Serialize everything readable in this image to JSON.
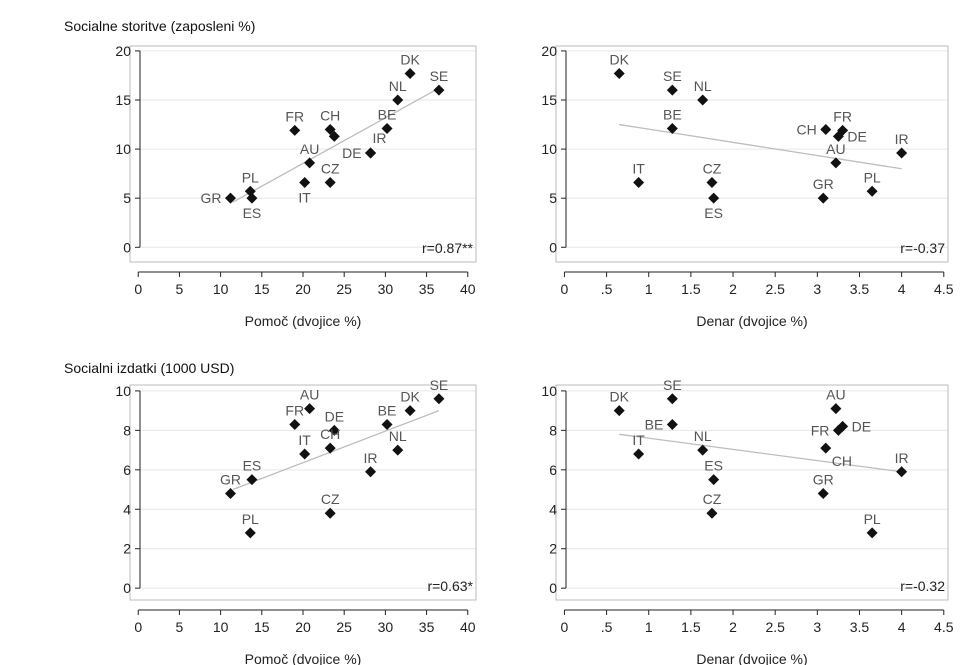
{
  "rows": [
    {
      "title": "Socialne storitve (zaposleni %)"
    },
    {
      "title": "Socialni izdatki (1000 USD)"
    }
  ],
  "chart_data": [
    {
      "type": "scatter",
      "xlabel": "Pomoč (dvojice %)",
      "xticks": [
        0,
        5,
        10,
        15,
        20,
        25,
        30,
        35,
        40
      ],
      "xticklabels": [
        "0",
        "5",
        "10",
        "15",
        "20",
        "25",
        "30",
        "35",
        "40"
      ],
      "yticks": [
        0,
        5,
        10,
        15,
        20
      ],
      "yticklabels": [
        "0",
        "5",
        "10",
        "15",
        "20"
      ],
      "xlim": [
        -1,
        41
      ],
      "ylim": [
        -1.5,
        20.5
      ],
      "annotation": "r=0.87**",
      "fit_line": {
        "x0": 11.5,
        "y0": 4.6,
        "x1": 36.5,
        "y1": 16.2
      },
      "points": [
        {
          "label": "GR",
          "x": 11.2,
          "y": 5.0,
          "pos": "left"
        },
        {
          "label": "PL",
          "x": 13.6,
          "y": 5.7,
          "pos": "top"
        },
        {
          "label": "ES",
          "x": 13.8,
          "y": 5.0,
          "pos": "bottom"
        },
        {
          "label": "FR",
          "x": 19.0,
          "y": 11.9,
          "pos": "top"
        },
        {
          "label": "IT",
          "x": 20.2,
          "y": 6.6,
          "pos": "bottom"
        },
        {
          "label": "AU",
          "x": 20.8,
          "y": 8.6,
          "pos": "top"
        },
        {
          "label": "CH",
          "x": 23.3,
          "y": 12.0,
          "pos": "top"
        },
        {
          "label": "",
          "x": 23.8,
          "y": 11.3,
          "pos": "none"
        },
        {
          "label": "CZ",
          "x": 23.3,
          "y": 6.6,
          "pos": "top"
        },
        {
          "label": "DE",
          "x": 28.2,
          "y": 9.6,
          "pos": "left"
        },
        {
          "label": "IR",
          "x": 28.2,
          "y": 9.6,
          "pos": "topright"
        },
        {
          "label": "BE",
          "x": 30.2,
          "y": 12.1,
          "pos": "top"
        },
        {
          "label": "NL",
          "x": 31.5,
          "y": 15.0,
          "pos": "top"
        },
        {
          "label": "DK",
          "x": 33.0,
          "y": 17.7,
          "pos": "top"
        },
        {
          "label": "SE",
          "x": 36.5,
          "y": 16.0,
          "pos": "top"
        }
      ]
    },
    {
      "type": "scatter",
      "xlabel": "Denar (dvojice %)",
      "xticks": [
        0,
        0.5,
        1,
        1.5,
        2,
        2.5,
        3,
        3.5,
        4,
        4.5
      ],
      "xticklabels": [
        "0",
        ".5",
        "1",
        "1.5",
        "2",
        "2.5",
        "3",
        "3.5",
        "4",
        "4.5"
      ],
      "yticks": [
        0,
        5,
        10,
        15,
        20
      ],
      "yticklabels": [
        "0",
        "5",
        "10",
        "15",
        "20"
      ],
      "xlim": [
        -0.1,
        4.55
      ],
      "ylim": [
        -1.5,
        20.5
      ],
      "annotation": "r=-0.37",
      "fit_line": {
        "x0": 0.65,
        "y0": 12.5,
        "x1": 4.0,
        "y1": 8.0
      },
      "points": [
        {
          "label": "DK",
          "x": 0.65,
          "y": 17.7,
          "pos": "top"
        },
        {
          "label": "SE",
          "x": 1.28,
          "y": 16.0,
          "pos": "top"
        },
        {
          "label": "NL",
          "x": 1.64,
          "y": 15.0,
          "pos": "top"
        },
        {
          "label": "BE",
          "x": 1.28,
          "y": 12.1,
          "pos": "top"
        },
        {
          "label": "IT",
          "x": 0.88,
          "y": 6.6,
          "pos": "top"
        },
        {
          "label": "CZ",
          "x": 1.75,
          "y": 6.6,
          "pos": "top"
        },
        {
          "label": "ES",
          "x": 1.77,
          "y": 5.0,
          "pos": "bottom"
        },
        {
          "label": "CH",
          "x": 3.1,
          "y": 12.0,
          "pos": "left"
        },
        {
          "label": "FR",
          "x": 3.3,
          "y": 11.9,
          "pos": "top"
        },
        {
          "label": "DE",
          "x": 3.25,
          "y": 11.3,
          "pos": "right"
        },
        {
          "label": "AU",
          "x": 3.22,
          "y": 8.6,
          "pos": "top"
        },
        {
          "label": "GR",
          "x": 3.07,
          "y": 5.0,
          "pos": "top"
        },
        {
          "label": "PL",
          "x": 3.65,
          "y": 5.7,
          "pos": "top"
        },
        {
          "label": "IR",
          "x": 4.0,
          "y": 9.6,
          "pos": "top"
        }
      ]
    },
    {
      "type": "scatter",
      "xlabel": "Pomoč (dvojice %)",
      "xticks": [
        0,
        5,
        10,
        15,
        20,
        25,
        30,
        35,
        40
      ],
      "xticklabels": [
        "0",
        "5",
        "10",
        "15",
        "20",
        "25",
        "30",
        "35",
        "40"
      ],
      "yticks": [
        0,
        2,
        4,
        6,
        8,
        10
      ],
      "yticklabels": [
        "0",
        "2",
        "4",
        "6",
        "8",
        "10"
      ],
      "xlim": [
        -1,
        41
      ],
      "ylim": [
        -0.6,
        10.3
      ],
      "annotation": "r=0.63*",
      "fit_line": {
        "x0": 11.5,
        "y0": 5.0,
        "x1": 36.5,
        "y1": 9.0
      },
      "points": [
        {
          "label": "GR",
          "x": 11.2,
          "y": 4.8,
          "pos": "top"
        },
        {
          "label": "ES",
          "x": 13.8,
          "y": 5.5,
          "pos": "top"
        },
        {
          "label": "PL",
          "x": 13.6,
          "y": 2.8,
          "pos": "top"
        },
        {
          "label": "FR",
          "x": 19.0,
          "y": 8.3,
          "pos": "top"
        },
        {
          "label": "AU",
          "x": 20.8,
          "y": 9.1,
          "pos": "top"
        },
        {
          "label": "IT",
          "x": 20.2,
          "y": 6.8,
          "pos": "top"
        },
        {
          "label": "DE",
          "x": 23.8,
          "y": 8.0,
          "pos": "top"
        },
        {
          "label": "CH",
          "x": 23.3,
          "y": 7.1,
          "pos": "top"
        },
        {
          "label": "CZ",
          "x": 23.3,
          "y": 3.8,
          "pos": "top"
        },
        {
          "label": "IR",
          "x": 28.2,
          "y": 5.9,
          "pos": "top"
        },
        {
          "label": "BE",
          "x": 30.2,
          "y": 8.3,
          "pos": "top"
        },
        {
          "label": "NL",
          "x": 31.5,
          "y": 7.0,
          "pos": "top"
        },
        {
          "label": "DK",
          "x": 33.0,
          "y": 9.0,
          "pos": "top"
        },
        {
          "label": "SE",
          "x": 36.5,
          "y": 9.6,
          "pos": "top"
        }
      ]
    },
    {
      "type": "scatter",
      "xlabel": "Denar (dvojice %)",
      "xticks": [
        0,
        0.5,
        1,
        1.5,
        2,
        2.5,
        3,
        3.5,
        4,
        4.5
      ],
      "xticklabels": [
        "0",
        ".5",
        "1",
        "1.5",
        "2",
        "2.5",
        "3",
        "3.5",
        "4",
        "4.5"
      ],
      "yticks": [
        0,
        2,
        4,
        6,
        8,
        10
      ],
      "yticklabels": [
        "0",
        "2",
        "4",
        "6",
        "8",
        "10"
      ],
      "xlim": [
        -0.1,
        4.55
      ],
      "ylim": [
        -0.6,
        10.3
      ],
      "annotation": "r=-0.32",
      "fit_line": {
        "x0": 0.65,
        "y0": 7.8,
        "x1": 4.0,
        "y1": 5.9
      },
      "points": [
        {
          "label": "DK",
          "x": 0.65,
          "y": 9.0,
          "pos": "top"
        },
        {
          "label": "SE",
          "x": 1.28,
          "y": 9.6,
          "pos": "top"
        },
        {
          "label": "BE",
          "x": 1.28,
          "y": 8.3,
          "pos": "left"
        },
        {
          "label": "IT",
          "x": 0.88,
          "y": 6.8,
          "pos": "top"
        },
        {
          "label": "NL",
          "x": 1.64,
          "y": 7.0,
          "pos": "top"
        },
        {
          "label": "ES",
          "x": 1.77,
          "y": 5.5,
          "pos": "top"
        },
        {
          "label": "CZ",
          "x": 1.75,
          "y": 3.8,
          "pos": "top"
        },
        {
          "label": "AU",
          "x": 3.22,
          "y": 9.1,
          "pos": "top"
        },
        {
          "label": "FR",
          "x": 3.25,
          "y": 8.0,
          "pos": "left"
        },
        {
          "label": "DE",
          "x": 3.3,
          "y": 8.2,
          "pos": "right"
        },
        {
          "label": "CH",
          "x": 3.1,
          "y": 7.1,
          "pos": "bottomright"
        },
        {
          "label": "GR",
          "x": 3.07,
          "y": 4.8,
          "pos": "top"
        },
        {
          "label": "PL",
          "x": 3.65,
          "y": 2.8,
          "pos": "top"
        },
        {
          "label": "IR",
          "x": 4.0,
          "y": 5.9,
          "pos": "top"
        }
      ]
    }
  ]
}
